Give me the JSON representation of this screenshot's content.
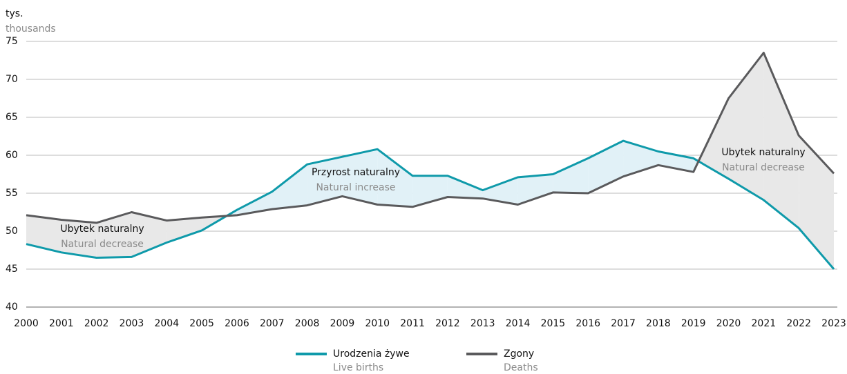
{
  "chart_data": {
    "type": "line",
    "y_unit": "tys.",
    "y_unit_en": "thousands",
    "categories": [
      "2000",
      "2001",
      "2002",
      "2003",
      "2004",
      "2005",
      "2006",
      "2007",
      "2008",
      "2009",
      "2010",
      "2011",
      "2012",
      "2013",
      "2014",
      "2015",
      "2016",
      "2017",
      "2018",
      "2019",
      "2020",
      "2021",
      "2022",
      "2023"
    ],
    "series": [
      {
        "name": "Urodzenia żywe",
        "name_en": "Live births",
        "color": "#0f9aaa",
        "values": [
          48.3,
          47.2,
          46.5,
          46.6,
          48.5,
          50.1,
          52.8,
          55.2,
          58.8,
          59.8,
          60.8,
          57.3,
          57.3,
          55.4,
          57.1,
          57.5,
          59.6,
          61.9,
          60.5,
          59.6,
          56.9,
          54.1,
          50.4,
          45.0
        ]
      },
      {
        "name": "Zgony",
        "name_en": "Deaths",
        "color": "#5a5a5c",
        "values": [
          52.1,
          51.5,
          51.1,
          52.5,
          51.4,
          51.8,
          52.1,
          52.9,
          53.4,
          54.6,
          53.5,
          53.2,
          54.5,
          54.3,
          53.5,
          55.1,
          55.0,
          57.2,
          58.7,
          57.8,
          67.5,
          73.5,
          62.6,
          57.6
        ]
      }
    ],
    "increase_color": "#e1f1f7",
    "decrease_color": "#e8e8e8",
    "annotations": [
      {
        "text": "Ubytek naturalny",
        "subtext": "Natural decrease"
      },
      {
        "text": "Przyrost naturalny",
        "subtext": "Natural increase"
      },
      {
        "text": "Ubytek naturalny",
        "subtext": "Natural decrease"
      }
    ],
    "ylim": [
      40,
      75
    ],
    "yticks": [
      40,
      45,
      50,
      55,
      60,
      65,
      70,
      75
    ],
    "grid": true
  }
}
